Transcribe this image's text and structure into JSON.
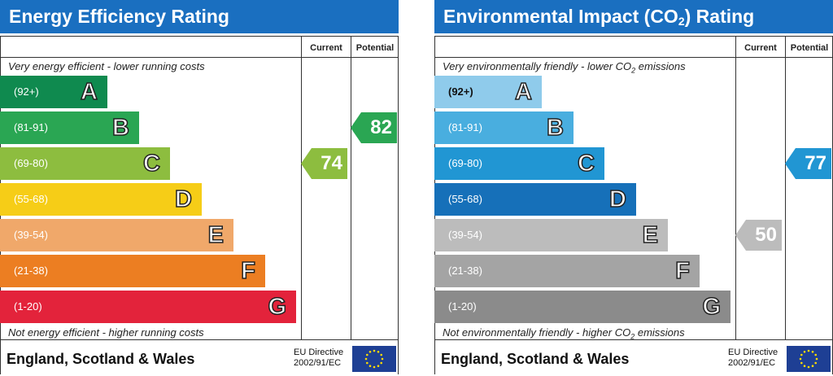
{
  "chart_data": [
    {
      "type": "bar",
      "title": "Energy Efficiency Rating",
      "columns": [
        "Current",
        "Potential"
      ],
      "top_note": "Very energy efficient - lower running costs",
      "bottom_note": "Not energy efficient - higher running costs",
      "bands": [
        {
          "letter": "A",
          "range": "(92+)",
          "color": "#0f8a4f"
        },
        {
          "letter": "B",
          "range": "(81-91)",
          "color": "#2aa653"
        },
        {
          "letter": "C",
          "range": "(69-80)",
          "color": "#8dbd3f"
        },
        {
          "letter": "D",
          "range": "(55-68)",
          "color": "#f6cd17"
        },
        {
          "letter": "E",
          "range": "(39-54)",
          "color": "#f0a86a"
        },
        {
          "letter": "F",
          "range": "(21-38)",
          "color": "#ec7e22"
        },
        {
          "letter": "G",
          "range": "(1-20)",
          "color": "#e3233b"
        }
      ],
      "current": {
        "value": 74,
        "band": "C",
        "color": "#8dbd3f"
      },
      "potential": {
        "value": 82,
        "band": "B",
        "color": "#2aa653"
      },
      "footer": "England, Scotland & Wales",
      "directive": [
        "EU Directive",
        "2002/91/EC"
      ]
    },
    {
      "type": "bar",
      "title": "Environmental Impact (CO2) Rating",
      "title_main": "Environmental Impact (CO",
      "title_sub": "2",
      "title_end": ") Rating",
      "columns": [
        "Current",
        "Potential"
      ],
      "top_note": "Very environmentally friendly - lower CO2 emissions",
      "top_note_main": "Very environmentally friendly - lower CO",
      "top_note_end": " emissions",
      "bottom_note": "Not environmentally friendly - higher CO2 emissions",
      "bottom_note_main": "Not environmentally friendly - higher CO",
      "bottom_note_end": " emissions",
      "bands": [
        {
          "letter": "A",
          "range": "(92+)",
          "color": "#8fcbeb"
        },
        {
          "letter": "B",
          "range": "(81-91)",
          "color": "#49aedf"
        },
        {
          "letter": "C",
          "range": "(69-80)",
          "color": "#2196d3"
        },
        {
          "letter": "D",
          "range": "(55-68)",
          "color": "#1670b9"
        },
        {
          "letter": "E",
          "range": "(39-54)",
          "color": "#bcbcbc"
        },
        {
          "letter": "F",
          "range": "(21-38)",
          "color": "#a4a4a4"
        },
        {
          "letter": "G",
          "range": "(1-20)",
          "color": "#8b8b8b"
        }
      ],
      "current": {
        "value": 50,
        "band": "E",
        "color": "#bcbcbc"
      },
      "potential": {
        "value": 77,
        "band": "C",
        "color": "#2196d3"
      },
      "footer": "England, Scotland & Wales",
      "directive": [
        "EU Directive",
        "2002/91/EC"
      ]
    }
  ]
}
